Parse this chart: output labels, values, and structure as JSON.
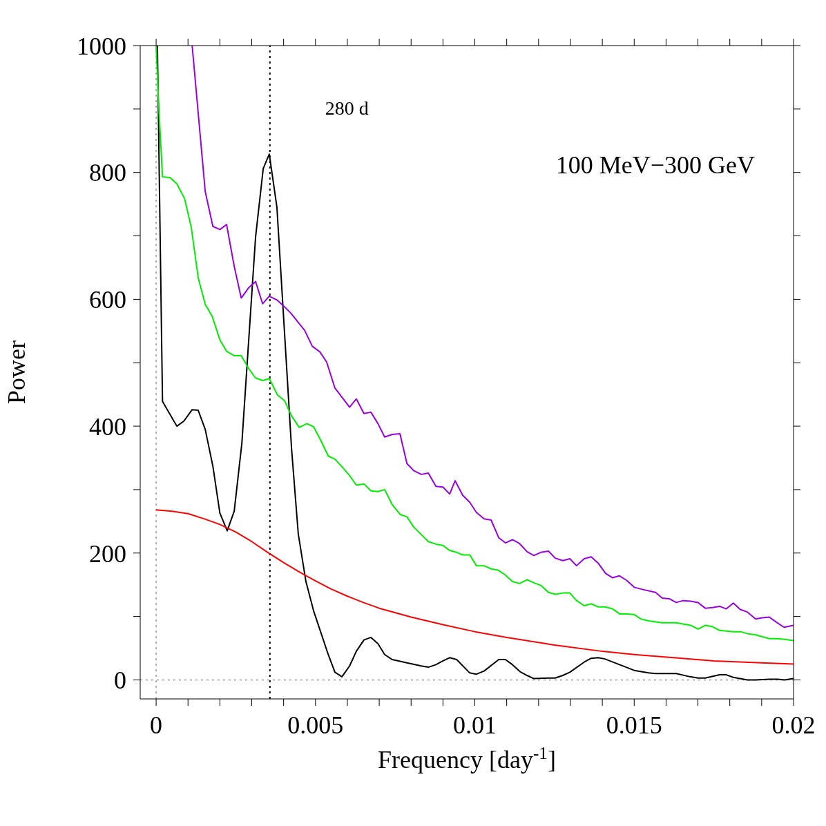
{
  "chart_data": {
    "type": "line",
    "xlabel": "Frequency [day$^{-1}$]",
    "ylabel": "Power",
    "annotations": [
      "100 MeV−300 GeV"
    ],
    "xlim": [
      -0.0005,
      0.02
    ],
    "ylim": [
      -30,
      1000
    ],
    "xticks": [
      0,
      {
        "value": 0.001,
        "label": null
      },
      {
        "value": 0.002,
        "label": null
      },
      {
        "value": 0.003,
        "label": null
      },
      {
        "value": 0.004,
        "label": null
      },
      0.005,
      {
        "value": 0.006,
        "label": null
      },
      {
        "value": 0.007,
        "label": null
      },
      {
        "value": 0.008,
        "label": null
      },
      {
        "value": 0.009,
        "label": null
      },
      0.01,
      {
        "value": 0.011,
        "label": null
      },
      {
        "value": 0.012,
        "label": null
      },
      {
        "value": 0.013,
        "label": null
      },
      {
        "value": 0.014,
        "label": null
      },
      0.015,
      {
        "value": 0.016,
        "label": null
      },
      {
        "value": 0.017,
        "label": null
      },
      {
        "value": 0.018,
        "label": null
      },
      {
        "value": 0.019,
        "label": null
      },
      0.02
    ],
    "yticks": [
      0,
      {
        "value": 100,
        "label": null
      },
      200,
      {
        "value": 300,
        "label": null
      },
      400,
      {
        "value": 500,
        "label": null
      },
      600,
      {
        "value": 700,
        "label": null
      },
      800,
      {
        "value": 900,
        "label": null
      },
      1000
    ],
    "marker": "none",
    "line_style": "solid",
    "ref_lines": [
      {
        "axis": "x",
        "value": 0,
        "label": null,
        "color": "#999999",
        "line_style": "dotted"
      },
      {
        "axis": "y",
        "value": 0,
        "label": null,
        "color": "#999999",
        "line_style": "dotted"
      },
      {
        "axis": "x",
        "value": 0.00357,
        "label": "280 d",
        "color": "#000000",
        "line_style": "dotted"
      }
    ],
    "series": [
      {
        "color": "#000000",
        "x": [
          4e-05,
          0.0002,
          0.00065,
          0.00087,
          0.00113,
          0.00132,
          0.00154,
          0.00178,
          0.002,
          0.00223,
          0.00245,
          0.00269,
          0.00312,
          0.00336,
          0.00355,
          0.00379,
          0.00425,
          0.00446,
          0.0047,
          0.00494,
          0.0054,
          0.00561,
          0.00583,
          0.00607,
          0.00628,
          0.00652,
          0.00674,
          0.00696,
          0.00717,
          0.00741,
          0.00787,
          0.00832,
          0.00854,
          0.00878,
          0.009,
          0.00921,
          0.00943,
          0.00984,
          0.01005,
          0.01029,
          0.01075,
          0.01096,
          0.01118,
          0.01142,
          0.01164,
          0.01185,
          0.01231,
          0.01252,
          0.01276,
          0.01298,
          0.01343,
          0.01365,
          0.01387,
          0.01408,
          0.01454,
          0.015,
          0.01545,
          0.01567,
          0.0161,
          0.01632,
          0.01675,
          0.017,
          0.01723,
          0.01768,
          0.01789,
          0.01811,
          0.01855,
          0.01881,
          0.01924,
          0.0195,
          0.01972,
          0.02
        ],
        "values": [
          1000,
          439,
          400,
          408,
          426,
          425,
          395,
          337,
          263,
          235,
          266,
          373,
          698,
          806,
          829,
          745,
          364,
          230,
          155,
          109,
          40,
          12,
          5,
          22,
          45,
          63,
          67,
          57,
          40,
          32,
          27,
          22,
          20,
          24,
          30,
          35,
          32,
          11,
          9,
          14,
          32,
          32,
          24,
          13,
          7,
          2,
          3,
          3,
          7,
          12,
          28,
          34,
          35,
          33,
          24,
          15,
          11,
          10,
          10,
          10,
          5,
          3,
          3,
          8,
          8,
          4,
          0,
          0,
          1,
          1,
          0,
          2
        ]
      },
      {
        "color": "#9900e0",
        "x": [
          0.00113,
          0.00154,
          0.00178,
          0.002,
          0.00221,
          0.00245,
          0.00267,
          0.0029,
          0.00312,
          0.00334,
          0.00355,
          0.00379,
          0.00401,
          0.00423,
          0.00466,
          0.0049,
          0.00514,
          0.00535,
          0.00561,
          0.00607,
          0.00628,
          0.00652,
          0.00674,
          0.00696,
          0.00717,
          0.00741,
          0.00765,
          0.00787,
          0.00808,
          0.00832,
          0.00854,
          0.00878,
          0.009,
          0.00921,
          0.00938,
          0.00962,
          0.00984,
          0.01005,
          0.01029,
          0.01051,
          0.01075,
          0.01096,
          0.01118,
          0.0114,
          0.01164,
          0.01185,
          0.01207,
          0.01231,
          0.01252,
          0.01276,
          0.01298,
          0.01319,
          0.01343,
          0.01365,
          0.01387,
          0.0141,
          0.01432,
          0.01454,
          0.01476,
          0.015,
          0.01523,
          0.01567,
          0.01588,
          0.0161,
          0.01632,
          0.01653,
          0.01677,
          0.017,
          0.01723,
          0.01745,
          0.01768,
          0.01789,
          0.01811,
          0.01833,
          0.01855,
          0.01881,
          0.01902,
          0.01924,
          0.01946,
          0.0197,
          0.02
        ],
        "values": [
          1000,
          770,
          715,
          710,
          718,
          652,
          602,
          618,
          628,
          593,
          605,
          599,
          589,
          578,
          551,
          526,
          517,
          501,
          460,
          430,
          443,
          420,
          422,
          404,
          383,
          387,
          388,
          341,
          330,
          324,
          326,
          305,
          304,
          293,
          314,
          291,
          280,
          264,
          254,
          252,
          224,
          216,
          221,
          215,
          202,
          196,
          201,
          203,
          192,
          188,
          191,
          180,
          191,
          194,
          184,
          168,
          161,
          164,
          157,
          146,
          143,
          138,
          129,
          128,
          122,
          125,
          124,
          122,
          113,
          114,
          116,
          112,
          121,
          111,
          107,
          96,
          98,
          99,
          91,
          83,
          86
        ]
      },
      {
        "color": "#00ee00",
        "x": [
          0,
          9e-05,
          0.0002,
          0.00043,
          0.00065,
          0.00089,
          0.0011,
          0.00132,
          0.00154,
          0.00176,
          0.002,
          0.00221,
          0.00245,
          0.00267,
          0.0029,
          0.00312,
          0.00334,
          0.00355,
          0.00381,
          0.00403,
          0.00425,
          0.00449,
          0.00473,
          0.00494,
          0.00516,
          0.0054,
          0.00561,
          0.00583,
          0.00607,
          0.00628,
          0.00652,
          0.00674,
          0.00696,
          0.00717,
          0.00741,
          0.00765,
          0.00787,
          0.00808,
          0.00832,
          0.00854,
          0.00878,
          0.009,
          0.00921,
          0.00943,
          0.00962,
          0.00984,
          0.01005,
          0.01029,
          0.01051,
          0.01073,
          0.01094,
          0.01118,
          0.0114,
          0.01164,
          0.01185,
          0.01207,
          0.01231,
          0.01252,
          0.01276,
          0.01298,
          0.01319,
          0.01343,
          0.01365,
          0.01387,
          0.01408,
          0.01432,
          0.01454,
          0.01476,
          0.015,
          0.01521,
          0.01545,
          0.01588,
          0.0161,
          0.01632,
          0.01677,
          0.017,
          0.01723,
          0.01745,
          0.01768,
          0.01811,
          0.01833,
          0.01855,
          0.01881,
          0.01924,
          0.0195,
          0.01972,
          0.02
        ],
        "values": [
          1000,
          897,
          793,
          792,
          782,
          759,
          714,
          634,
          592,
          573,
          536,
          518,
          511,
          511,
          491,
          476,
          472,
          475,
          449,
          440,
          416,
          398,
          404,
          399,
          378,
          353,
          348,
          336,
          322,
          307,
          309,
          298,
          297,
          300,
          276,
          261,
          257,
          241,
          229,
          218,
          214,
          212,
          204,
          201,
          197,
          197,
          180,
          180,
          175,
          173,
          166,
          155,
          152,
          158,
          153,
          149,
          138,
          135,
          137,
          137,
          125,
          117,
          120,
          115,
          115,
          112,
          104,
          104,
          103,
          96,
          93,
          90,
          90,
          90,
          86,
          80,
          86,
          84,
          78,
          76,
          76,
          73,
          71,
          65,
          65,
          64,
          62
        ]
      },
      {
        "color": "#ff0000",
        "x": [
          0,
          0.0005,
          0.001,
          0.0015,
          0.002,
          0.0025,
          0.003,
          0.0035,
          0.004,
          0.0045,
          0.005,
          0.0055,
          0.006,
          0.0065,
          0.007,
          0.008,
          0.009,
          0.01,
          0.011,
          0.0125,
          0.014,
          0.015,
          0.0165,
          0.0175,
          0.019,
          0.02
        ],
        "values": [
          268,
          266,
          262,
          254,
          245,
          233,
          218,
          201,
          185,
          170,
          156,
          143,
          132,
          122,
          113,
          99,
          87,
          76,
          67,
          55,
          45,
          40,
          34,
          30,
          27,
          25
        ]
      }
    ]
  }
}
